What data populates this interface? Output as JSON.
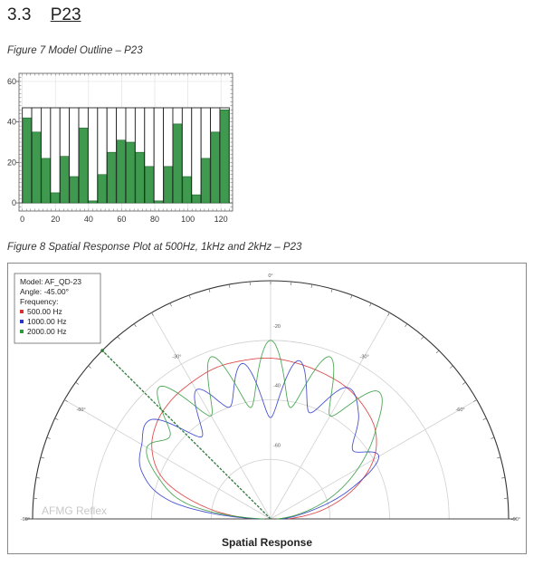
{
  "section": {
    "number": "3.3",
    "title": "P23"
  },
  "figure7": {
    "caption": "Figure 7 Model Outline – P23",
    "chart_data": {
      "type": "bar",
      "x_ticks": [
        0,
        20,
        40,
        60,
        80,
        100,
        120
      ],
      "y_ticks": [
        0,
        20,
        40,
        60
      ],
      "xlim": [
        -2,
        127
      ],
      "ylim": [
        -4,
        64
      ],
      "bar_top": 47,
      "bar_color": "#3f9a4f",
      "values": [
        42,
        35,
        22,
        5,
        23,
        13,
        37,
        1,
        14,
        25,
        31,
        30,
        25,
        18,
        1,
        18,
        39,
        13,
        4,
        22,
        35,
        46
      ]
    }
  },
  "figure8": {
    "caption": "Figure 8 Spatial Response Plot at 500Hz, 1kHz and 2kHz – P23",
    "title": "Spatial Response",
    "watermark": "AFMG Reflex",
    "legend": {
      "model": "Model:   AF_QD-23",
      "angle": "Angle:   -45.00°",
      "frequency_label": "Frequency:",
      "items": [
        {
          "label": "500.00 Hz",
          "color": "#d93030"
        },
        {
          "label": "1000.00 Hz",
          "color": "#2a36c8"
        },
        {
          "label": "2000.00 Hz",
          "color": "#2f9a3a"
        }
      ]
    },
    "angle_labels": [
      "0°",
      "-30°",
      "-30°",
      "-60°",
      "-60°",
      "-90°",
      "-90°"
    ],
    "ring_labels": [
      "-20",
      "-40",
      "-60"
    ],
    "aim_angle_deg": -45,
    "chart_data": {
      "type": "polar",
      "theta_deg": [
        -90,
        -80,
        -70,
        -60,
        -50,
        -40,
        -30,
        -20,
        -10,
        0,
        10,
        20,
        30,
        40,
        50,
        60,
        70,
        80,
        90
      ],
      "r_db_range": [
        -80,
        0
      ],
      "series": [
        {
          "name": "500.00 Hz",
          "r_db": [
            -74,
            -58,
            -42,
            -34,
            -30,
            -28,
            -27,
            -26,
            -26,
            -26,
            -27,
            -28,
            -29,
            -31,
            -34,
            -40,
            -50,
            -62,
            -74
          ]
        },
        {
          "name": "1000.00 Hz",
          "r_db": [
            -76,
            -46,
            -34,
            -30,
            -28,
            -44,
            -30,
            -40,
            -27,
            -46,
            -26,
            -42,
            -29,
            -34,
            -44,
            -38,
            -52,
            -68,
            -76
          ]
        },
        {
          "name": "2000.00 Hz",
          "r_db": [
            -78,
            -52,
            -40,
            -32,
            -36,
            -22,
            -40,
            -22,
            -42,
            -20,
            -42,
            -22,
            -40,
            -24,
            -34,
            -46,
            -58,
            -70,
            -78
          ]
        }
      ]
    }
  }
}
